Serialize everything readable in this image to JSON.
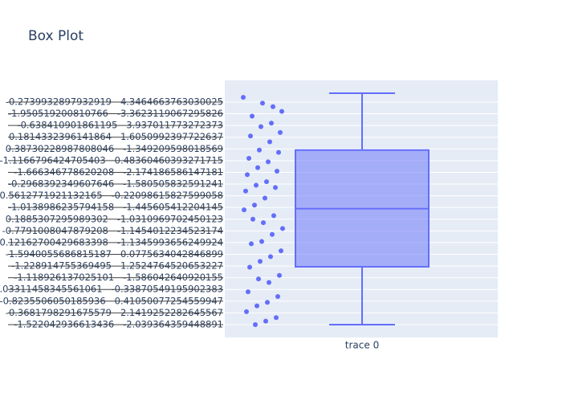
{
  "chart_data": {
    "type": "box",
    "title": "Box Plot",
    "categories": [
      "trace 0"
    ],
    "color": "#636efa",
    "box": {
      "upper_whisker": 19.75,
      "q3": 14.9,
      "median": 9.9,
      "q1": 4.94,
      "lower_whisker": 0
    },
    "points": [
      19.4,
      18.6,
      18.9,
      17.8,
      18.2,
      17.2,
      16.9,
      16.1,
      16.4,
      15.6,
      14.9,
      14.2,
      14.7,
      13.9,
      13.4,
      12.8,
      13.1,
      12.2,
      11.9,
      11.4,
      11.7,
      10.8,
      10.2,
      9.8,
      9.3,
      8.7,
      9.0,
      8.2,
      7.7,
      7.1,
      6.9,
      6.3,
      5.8,
      5.4,
      4.9,
      4.2,
      3.6,
      3.9,
      2.8,
      2.4,
      1.9,
      1.6,
      1.1,
      0.6,
      0.3,
      0.0
    ],
    "ylim": [
      -1.1,
      20.85
    ],
    "yticks": [
      {
        "value": 19,
        "label": "-0.2739932897932919   4.3464663763030025"
      },
      {
        "value": 18,
        "label": "-1.950519200810766   -3.3623119067295826"
      },
      {
        "value": 17,
        "label": "-0.638410901861195   3.937011773272373"
      },
      {
        "value": 16,
        "label": "0.1814332396141864   1.6050992397722637"
      },
      {
        "value": 15,
        "label": "0.38730228987808046   -1.349209598018569"
      },
      {
        "value": 14,
        "label": "-1.1166796424705403   0.48360460393271715"
      },
      {
        "value": 13,
        "label": "-1.666346778620208   -2.174186586147181"
      },
      {
        "value": 12,
        "label": "-0.2968392349607646   -1.580505832591241"
      },
      {
        "value": 11,
        "label": "-0.5612771921132165   -0.22098615827599058"
      },
      {
        "value": 10,
        "label": "-1.0138986235794158   -1.445605412204145"
      },
      {
        "value": 9,
        "label": "0.1885307295989302   -1.0310969702450123"
      },
      {
        "value": 8,
        "label": "-0.7791008047879208   -1.1454012234523174"
      },
      {
        "value": 7,
        "label": "0.12162700429683398   -1.1345993656249924"
      },
      {
        "value": 6,
        "label": "-1.5940055686815187   0.0775634042846899"
      },
      {
        "value": 5,
        "label": "-1.228914755369495   1.2524764520653227"
      },
      {
        "value": 4,
        "label": "-1.118926137025101   -1.586042640920155"
      },
      {
        "value": 3,
        "label": "0.03311458345561061   -0.33870549195902383"
      },
      {
        "value": 2,
        "label": "-0.8235506050185936   0.41050077254559947"
      },
      {
        "value": 1,
        "label": "-0.3681798291675579   2.1419252282645567"
      },
      {
        "value": 0,
        "label": "-1.522042936613436   -2.039364359448891"
      }
    ],
    "grid": true
  }
}
